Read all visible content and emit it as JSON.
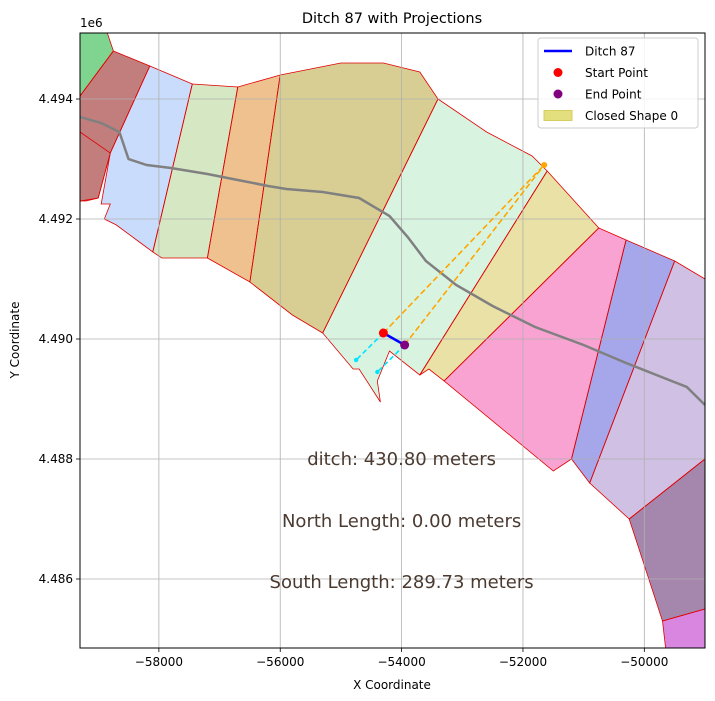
{
  "chart_data": {
    "type": "scatter",
    "title": "Ditch 87 with Projections",
    "xlabel": "X Coordinate",
    "ylabel": "Y Coordinate",
    "y_offset_label": "1e6",
    "xlim": [
      -59300,
      -49000
    ],
    "ylim": [
      4484850,
      4495100
    ],
    "x_ticks": [
      {
        "value": -58000,
        "label": "−58000"
      },
      {
        "value": -56000,
        "label": "−56000"
      },
      {
        "value": -54000,
        "label": "−54000"
      },
      {
        "value": -52000,
        "label": "−52000"
      },
      {
        "value": -50000,
        "label": "−50000"
      }
    ],
    "y_ticks": [
      {
        "value": 4486000,
        "label": "4.486"
      },
      {
        "value": 4488000,
        "label": "4.488"
      },
      {
        "value": 4490000,
        "label": "4.490"
      },
      {
        "value": 4492000,
        "label": "4.492"
      },
      {
        "value": 4494000,
        "label": "4.494"
      }
    ],
    "grid": true,
    "legend_placement": "top-right",
    "legend": [
      {
        "label": "Ditch 87",
        "kind": "line",
        "color": "#0000ff"
      },
      {
        "label": "Start Point",
        "kind": "marker",
        "color": "#ff0000"
      },
      {
        "label": "End Point",
        "kind": "marker",
        "color": "#800080"
      },
      {
        "label": "Closed Shape 0",
        "kind": "patch",
        "color": "#e3de7e"
      }
    ],
    "regions": [
      {
        "color": "#7fd48f",
        "points": [
          [
            -59300,
            4495100
          ],
          [
            -58850,
            4495100
          ],
          [
            -58750,
            4494800
          ],
          [
            -59300,
            4494050
          ]
        ]
      },
      {
        "color": "#c27e7c",
        "points": [
          [
            -59300,
            4494050
          ],
          [
            -58750,
            4494800
          ],
          [
            -58150,
            4494550
          ],
          [
            -58800,
            4493100
          ],
          [
            -59000,
            4492350
          ],
          [
            -59200,
            4492300
          ],
          [
            -59300,
            4492300
          ]
        ]
      },
      {
        "color": "#c9dcfb",
        "points": [
          [
            -58150,
            4494550
          ],
          [
            -57450,
            4494250
          ],
          [
            -58100,
            4491450
          ],
          [
            -58300,
            4491600
          ],
          [
            -58700,
            4491900
          ],
          [
            -58900,
            4492000
          ],
          [
            -58800,
            4492250
          ],
          [
            -58950,
            4492250
          ],
          [
            -58800,
            4493100
          ]
        ]
      },
      {
        "color": "#d6e8c3",
        "points": [
          [
            -57450,
            4494250
          ],
          [
            -56700,
            4494200
          ],
          [
            -57200,
            4491350
          ],
          [
            -57600,
            4491350
          ],
          [
            -57950,
            4491350
          ],
          [
            -58100,
            4491450
          ]
        ]
      },
      {
        "color": "#efc18e",
        "points": [
          [
            -56700,
            4494200
          ],
          [
            -56000,
            4494400
          ],
          [
            -56500,
            4490950
          ],
          [
            -57200,
            4491350
          ]
        ]
      },
      {
        "color": "#d8ce93",
        "points": [
          [
            -56000,
            4494400
          ],
          [
            -55000,
            4494600
          ],
          [
            -54300,
            4494600
          ],
          [
            -53700,
            4494450
          ],
          [
            -53400,
            4494000
          ],
          [
            -55300,
            4490100
          ],
          [
            -55800,
            4490400
          ],
          [
            -56500,
            4490950
          ]
        ]
      },
      {
        "color": "#d8f4e1",
        "points": [
          [
            -53400,
            4494000
          ],
          [
            -52600,
            4493450
          ],
          [
            -51850,
            4493050
          ],
          [
            -51600,
            4492800
          ],
          [
            -53700,
            4489400
          ],
          [
            -54200,
            4489800
          ],
          [
            -54400,
            4489300
          ],
          [
            -54350,
            4488950
          ],
          [
            -54700,
            4489500
          ],
          [
            -54800,
            4489500
          ],
          [
            -55300,
            4490100
          ]
        ]
      },
      {
        "color": "#e9e1a6",
        "points": [
          [
            -51600,
            4492800
          ],
          [
            -50750,
            4491850
          ],
          [
            -53300,
            4489300
          ],
          [
            -53550,
            4489500
          ],
          [
            -53700,
            4489400
          ]
        ]
      },
      {
        "color": "#f8a3d2",
        "points": [
          [
            -50750,
            4491850
          ],
          [
            -50300,
            4491650
          ],
          [
            -51200,
            4488000
          ],
          [
            -51500,
            4487800
          ],
          [
            -53300,
            4489300
          ]
        ]
      },
      {
        "color": "#a5a7ea",
        "points": [
          [
            -50300,
            4491650
          ],
          [
            -49500,
            4491300
          ],
          [
            -50900,
            4487600
          ],
          [
            -51200,
            4488000
          ]
        ]
      },
      {
        "color": "#d0c0e3",
        "points": [
          [
            -49500,
            4491300
          ],
          [
            -49000,
            4491000
          ],
          [
            -49000,
            4488000
          ],
          [
            -50250,
            4487000
          ],
          [
            -50900,
            4487600
          ]
        ]
      },
      {
        "color": "#a587ad",
        "points": [
          [
            -49000,
            4488000
          ],
          [
            -49000,
            4485500
          ],
          [
            -49700,
            4485300
          ],
          [
            -50250,
            4487000
          ]
        ]
      },
      {
        "color": "#d886df",
        "points": [
          [
            -49000,
            4485500
          ],
          [
            -49000,
            4484850
          ],
          [
            -49650,
            4484850
          ],
          [
            -49700,
            4485300
          ]
        ]
      }
    ],
    "outline": [
      [
        -59300,
        4493450
      ],
      [
        -58800,
        4493100
      ],
      [
        -59000,
        4492350
      ],
      [
        -59300,
        4492300
      ]
    ],
    "region_edges": [
      [
        [
          -58750,
          4494800
        ],
        [
          -59300,
          4494050
        ]
      ],
      [
        [
          -58150,
          4494550
        ],
        [
          -58800,
          4493100
        ]
      ],
      [
        [
          -57450,
          4494250
        ],
        [
          -58100,
          4491450
        ]
      ],
      [
        [
          -56700,
          4494200
        ],
        [
          -57200,
          4491350
        ]
      ],
      [
        [
          -56000,
          4494400
        ],
        [
          -56500,
          4490950
        ]
      ],
      [
        [
          -53400,
          4494000
        ],
        [
          -55300,
          4490100
        ]
      ],
      [
        [
          -51600,
          4492800
        ],
        [
          -53700,
          4489400
        ]
      ],
      [
        [
          -50750,
          4491850
        ],
        [
          -53300,
          4489300
        ]
      ],
      [
        [
          -50300,
          4491650
        ],
        [
          -51200,
          4488000
        ]
      ],
      [
        [
          -49500,
          4491300
        ],
        [
          -50900,
          4487600
        ]
      ],
      [
        [
          -49000,
          4488000
        ],
        [
          -50250,
          4487000
        ]
      ],
      [
        [
          -49000,
          4485500
        ],
        [
          -49700,
          4485300
        ]
      ]
    ],
    "river": [
      [
        -59300,
        4493700
      ],
      [
        -58950,
        4493600
      ],
      [
        -58650,
        4493450
      ],
      [
        -58500,
        4493000
      ],
      [
        -58200,
        4492900
      ],
      [
        -57800,
        4492850
      ],
      [
        -57200,
        4492750
      ],
      [
        -56700,
        4492650
      ],
      [
        -56200,
        4492550
      ],
      [
        -55900,
        4492500
      ],
      [
        -55300,
        4492450
      ],
      [
        -54700,
        4492350
      ],
      [
        -54200,
        4492050
      ],
      [
        -53900,
        4491700
      ],
      [
        -53600,
        4491300
      ],
      [
        -53100,
        4490900
      ],
      [
        -52500,
        4490550
      ],
      [
        -51800,
        4490200
      ],
      [
        -51000,
        4489900
      ],
      [
        -50300,
        4489600
      ],
      [
        -49800,
        4489400
      ],
      [
        -49300,
        4489200
      ],
      [
        -49000,
        4488900
      ]
    ],
    "ditch": [
      [
        -54300,
        4490100
      ],
      [
        -53950,
        4489900
      ]
    ],
    "start_point": [
      -54300,
      4490100
    ],
    "end_point": [
      -53950,
      4489900
    ],
    "orange_point": [
      -51650,
      4492900
    ],
    "north_projection": [
      [
        -54300,
        4490100
      ],
      [
        -51650,
        4492900
      ]
    ],
    "south_projection": [
      [
        -53950,
        4489900
      ],
      [
        -51650,
        4492900
      ]
    ],
    "cyan_from_start": [
      [
        -54300,
        4490100
      ],
      [
        -54750,
        4489650
      ]
    ],
    "cyan_from_end": [
      [
        -53950,
        4489900
      ],
      [
        -54400,
        4489450
      ]
    ],
    "annotations": [
      {
        "text": "ditch: 430.80 meters",
        "x": -54000,
        "y": 4487900
      },
      {
        "text": "North Length: 0.00 meters",
        "x": -54000,
        "y": 4486870
      },
      {
        "text": "South Length: 289.73 meters",
        "x": -54000,
        "y": 4485850
      }
    ]
  }
}
